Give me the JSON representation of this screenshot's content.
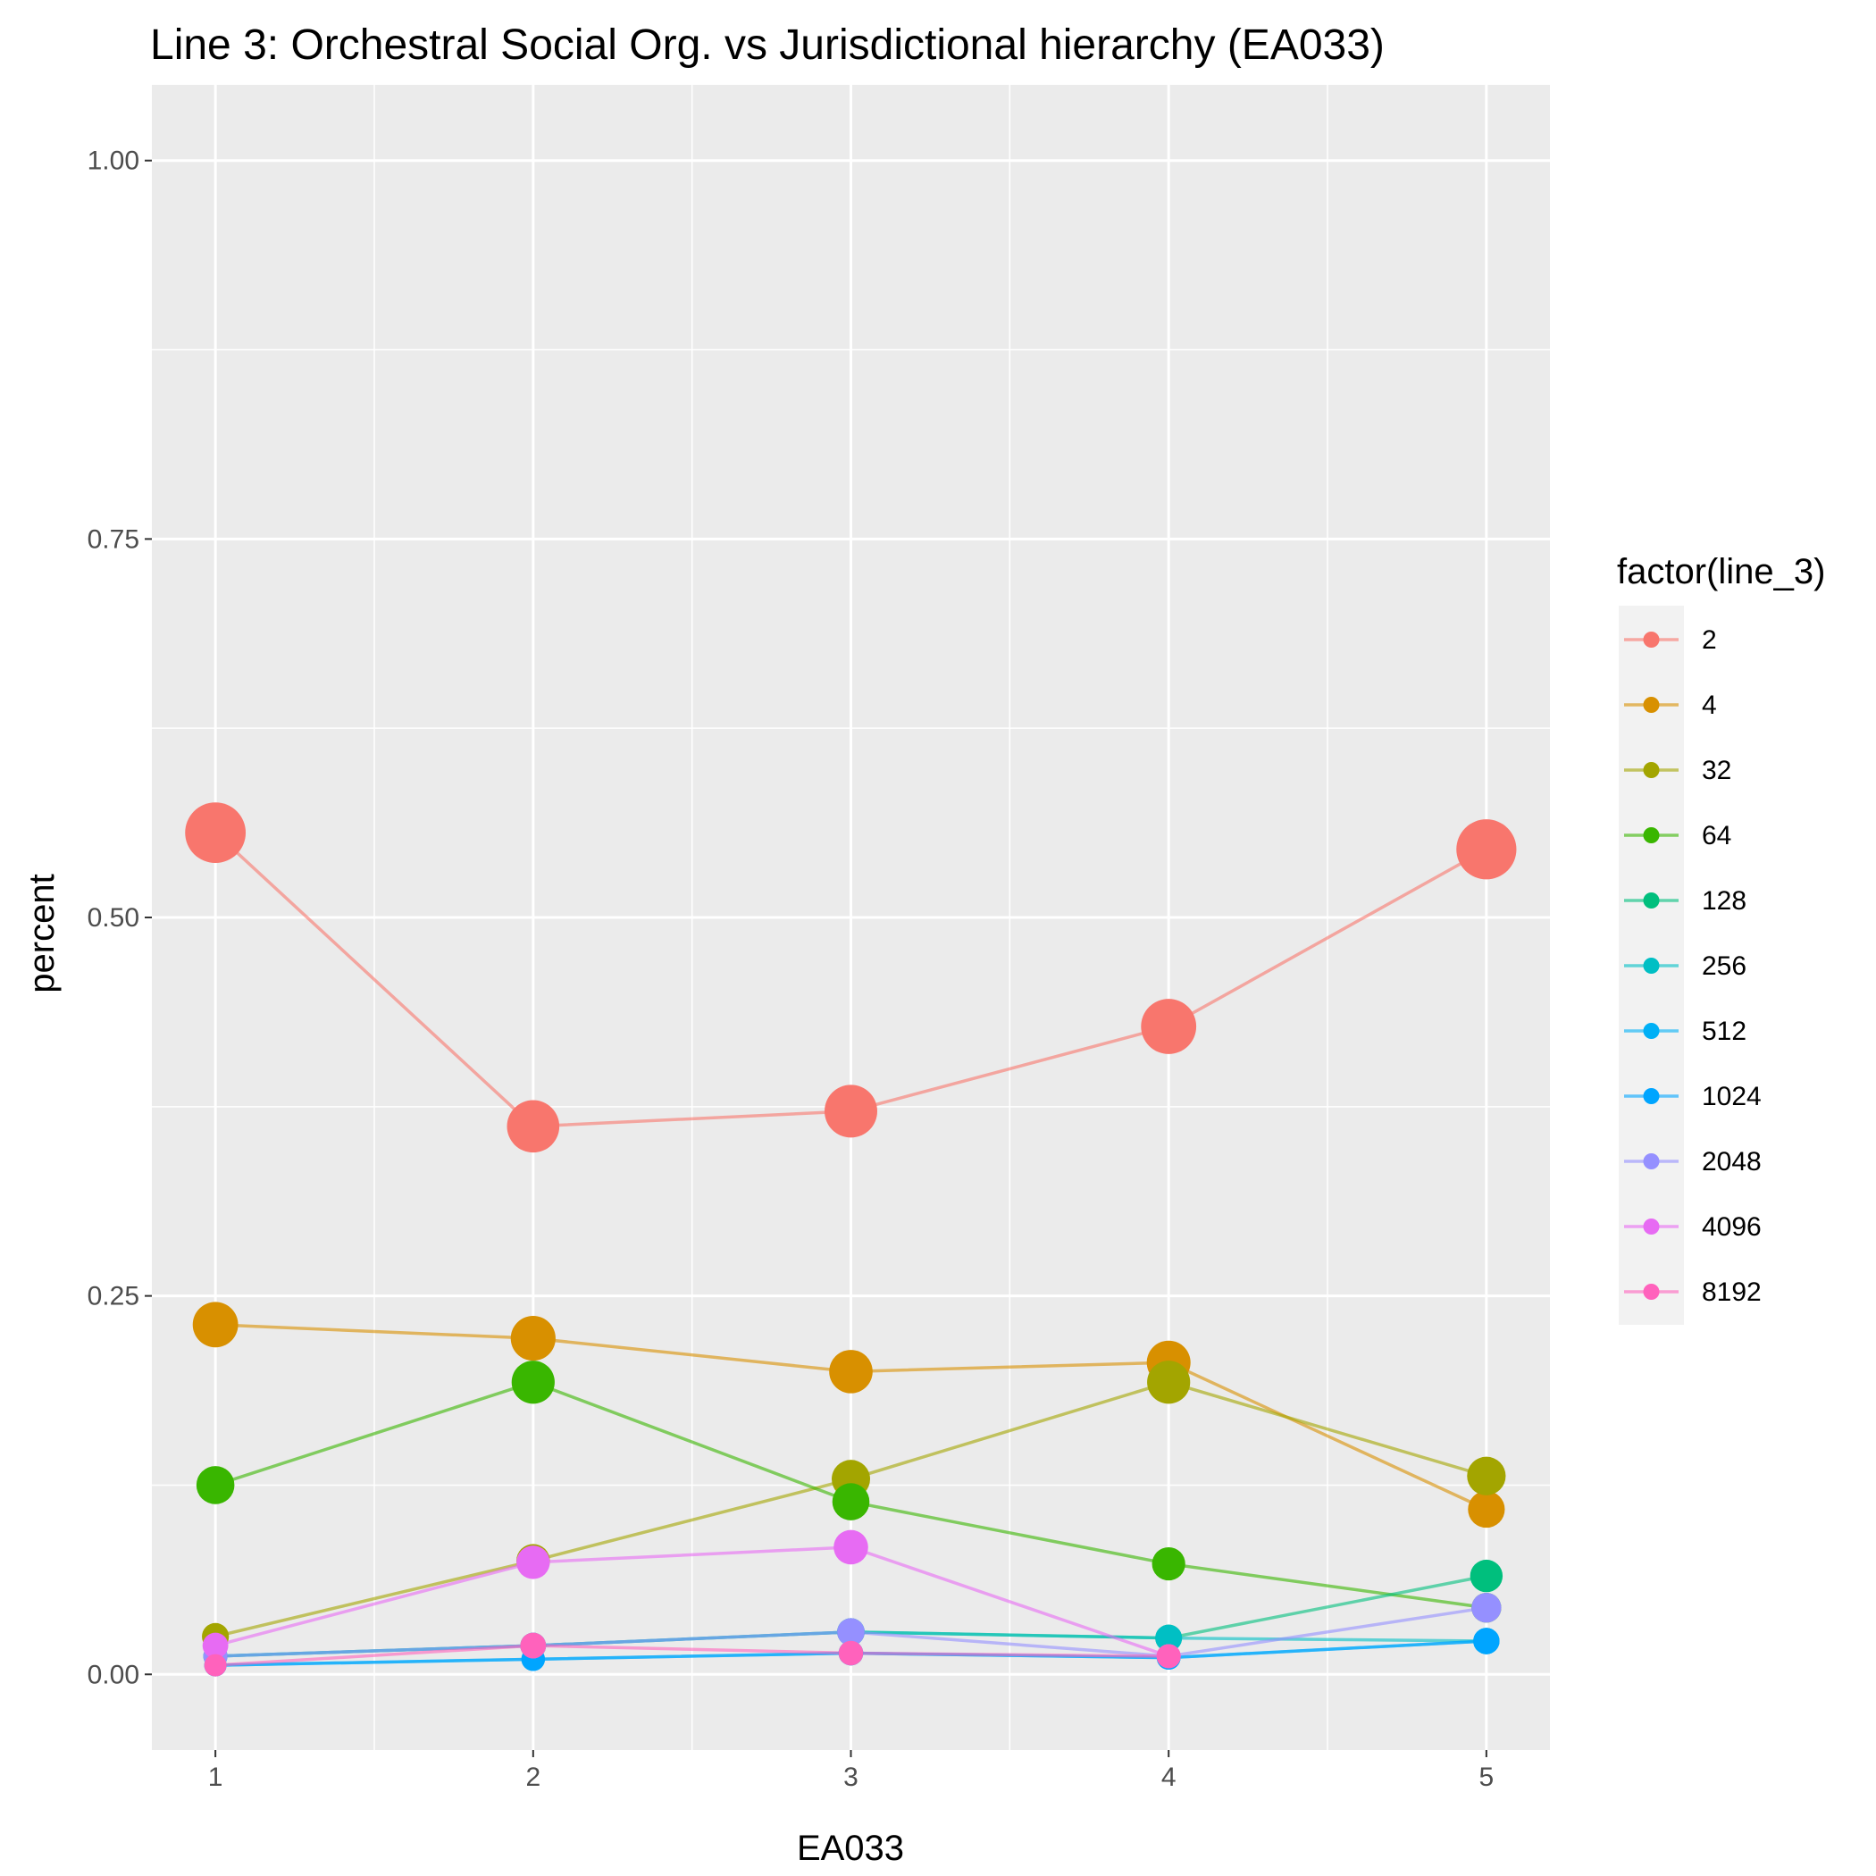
{
  "chart_data": {
    "type": "line",
    "title": "Line 3: Orchestral Social Org. vs Jurisdictional hierarchy (EA033)",
    "xlabel": "EA033",
    "ylabel": "percent",
    "x": [
      1,
      2,
      3,
      4,
      5
    ],
    "x_tick_labels": [
      "1",
      "2",
      "3",
      "4",
      "5"
    ],
    "xlim": [
      0.8,
      5.2
    ],
    "ylim": [
      -0.05,
      1.05
    ],
    "y_ticks": [
      0,
      0.25,
      0.5,
      0.75,
      1
    ],
    "y_tick_labels": [
      "0.00",
      "0.25",
      "0.50",
      "0.75",
      "1.00"
    ],
    "grid": true,
    "legend": {
      "title": "factor(line_3)",
      "position": "right"
    },
    "series": [
      {
        "name": "2",
        "color": "#F8766D",
        "values": [
          0.556,
          0.362,
          0.372,
          0.428,
          0.545
        ]
      },
      {
        "name": "4",
        "color": "#D89000",
        "values": [
          0.231,
          0.222,
          0.2,
          0.206,
          0.109
        ]
      },
      {
        "name": "32",
        "color": "#A3A500",
        "values": [
          0.025,
          0.075,
          0.129,
          0.193,
          0.131
        ]
      },
      {
        "name": "64",
        "color": "#39B600",
        "values": [
          0.125,
          0.193,
          0.114,
          0.073,
          0.044
        ]
      },
      {
        "name": "128",
        "color": "#00BF7D",
        "values": [
          0.012,
          0.019,
          0.028,
          0.024,
          0.065
        ]
      },
      {
        "name": "256",
        "color": "#00BFC4",
        "values": [
          0.012,
          0.019,
          0.028,
          0.024,
          0.022
        ]
      },
      {
        "name": "512",
        "color": "#00B0F6",
        "values": [
          0.006,
          0.01,
          0.014,
          0.011,
          0.022
        ]
      },
      {
        "name": "1024",
        "color": "#00A5FF",
        "values": [
          0.006,
          0.01,
          0.014,
          0.011,
          0.022
        ]
      },
      {
        "name": "2048",
        "color": "#9590FF",
        "values": [
          0.012,
          0.019,
          0.028,
          0.012,
          0.044
        ]
      },
      {
        "name": "4096",
        "color": "#E76BF3",
        "values": [
          0.019,
          0.074,
          0.084,
          0.012,
          null
        ]
      },
      {
        "name": "8192",
        "color": "#FF62BC",
        "values": [
          0.006,
          0.019,
          0.014,
          0.012,
          null
        ]
      }
    ]
  }
}
